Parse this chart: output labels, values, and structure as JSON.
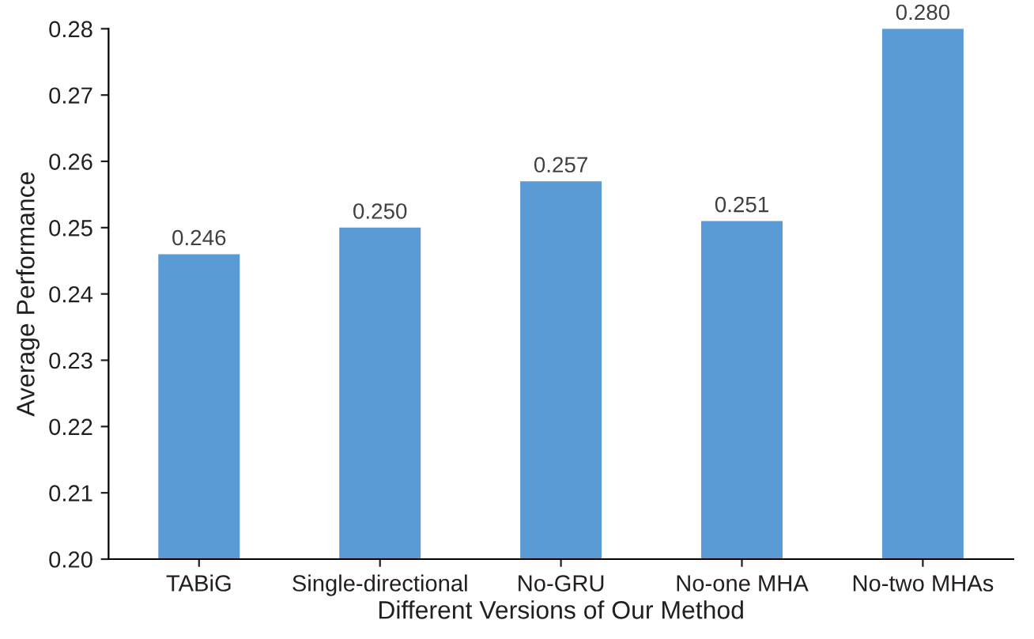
{
  "chart_data": {
    "type": "bar",
    "xlabel": "Different Versions of Our Method",
    "ylabel": "Average Performance",
    "categories": [
      "TABiG",
      "Single-directional",
      "No-GRU",
      "No-one MHA",
      "No-two MHAs"
    ],
    "values": [
      0.246,
      0.25,
      0.257,
      0.251,
      0.28
    ],
    "value_labels": [
      "0.246",
      "0.250",
      "0.257",
      "0.251",
      "0.280"
    ],
    "color": "#5b9bd5",
    "ylim": [
      0.2,
      0.28
    ],
    "yticks": [
      {
        "value": 0.2,
        "label": "0.20"
      },
      {
        "value": 0.21,
        "label": "0.21"
      },
      {
        "value": 0.22,
        "label": "0.22"
      },
      {
        "value": 0.23,
        "label": "0.23"
      },
      {
        "value": 0.24,
        "label": "0.24"
      },
      {
        "value": 0.25,
        "label": "0.25"
      },
      {
        "value": 0.26,
        "label": "0.26"
      },
      {
        "value": 0.27,
        "label": "0.27"
      },
      {
        "value": 0.28,
        "label": "0.28"
      }
    ],
    "grid": false,
    "legend": false
  }
}
